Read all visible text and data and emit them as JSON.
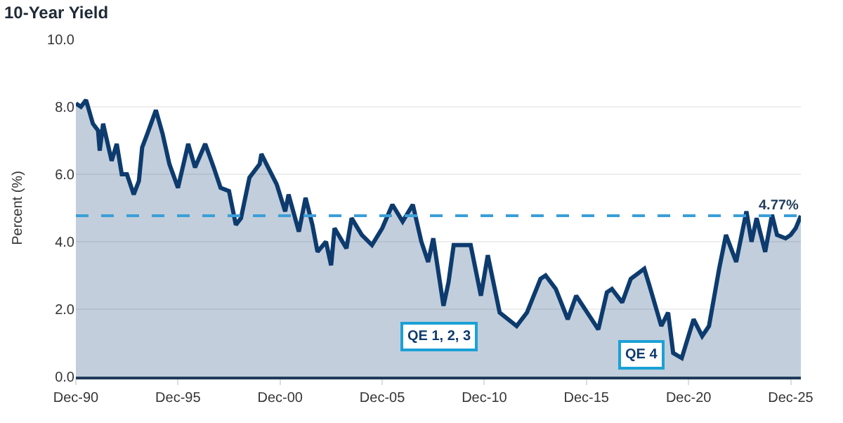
{
  "chart_data": {
    "type": "area",
    "title": "10-Year Yield",
    "ylabel": "Percent (%)",
    "x": [
      "1990-12",
      "1991-03",
      "1991-06",
      "1991-10",
      "1992-01",
      "1992-02",
      "1992-04",
      "1992-09",
      "1992-12",
      "1993-03",
      "1993-06",
      "1993-10",
      "1994-01",
      "1994-03",
      "1994-06",
      "1994-11",
      "1995-03",
      "1995-07",
      "1995-12",
      "1996-06",
      "1996-10",
      "1997-04",
      "1997-09",
      "1998-01",
      "1998-06",
      "1998-10",
      "1999-01",
      "1999-06",
      "1999-12",
      "2000-01",
      "2000-05",
      "2000-10",
      "2001-03",
      "2001-05",
      "2001-11",
      "2002-03",
      "2002-07",
      "2002-10",
      "2003-03",
      "2003-06",
      "2003-08",
      "2004-03",
      "2004-06",
      "2004-12",
      "2005-06",
      "2005-12",
      "2006-06",
      "2006-12",
      "2007-06",
      "2007-11",
      "2008-03",
      "2008-06",
      "2008-12",
      "2009-03",
      "2009-06",
      "2010-04",
      "2010-10",
      "2011-02",
      "2011-09",
      "2012-07",
      "2013-01",
      "2013-09",
      "2013-12",
      "2014-06",
      "2015-01",
      "2015-06",
      "2016-07",
      "2016-12",
      "2017-03",
      "2017-09",
      "2018-02",
      "2018-10",
      "2019-01",
      "2019-08",
      "2019-12",
      "2020-03",
      "2020-08",
      "2021-03",
      "2021-08",
      "2021-12",
      "2022-06",
      "2022-10",
      "2023-04",
      "2023-10",
      "2024-01",
      "2024-04",
      "2024-09",
      "2025-01",
      "2025-04",
      "2025-09",
      "2025-12",
      "2026-03",
      "2026-06"
    ],
    "series": [
      {
        "color": "#0d3b6e",
        "values": [
          8.1,
          8.0,
          8.2,
          7.5,
          7.3,
          6.7,
          7.5,
          6.4,
          6.9,
          6.0,
          6.0,
          5.4,
          5.8,
          6.8,
          7.2,
          7.9,
          7.2,
          6.3,
          5.6,
          6.9,
          6.2,
          6.9,
          6.2,
          5.6,
          5.5,
          4.5,
          4.7,
          5.9,
          6.3,
          6.6,
          6.2,
          5.7,
          4.9,
          5.4,
          4.3,
          5.3,
          4.5,
          3.7,
          4.0,
          3.3,
          4.4,
          3.8,
          4.7,
          4.2,
          3.9,
          4.4,
          5.1,
          4.6,
          5.1,
          4.0,
          3.4,
          4.1,
          2.1,
          2.8,
          3.9,
          3.9,
          2.4,
          3.6,
          1.9,
          1.5,
          1.9,
          2.9,
          3.0,
          2.6,
          1.7,
          2.4,
          1.4,
          2.5,
          2.6,
          2.2,
          2.9,
          3.2,
          2.7,
          1.5,
          1.9,
          0.7,
          0.55,
          1.7,
          1.2,
          1.5,
          3.2,
          4.2,
          3.4,
          4.9,
          4.0,
          4.7,
          3.7,
          4.8,
          4.2,
          4.1,
          4.2,
          4.4,
          4.77
        ]
      }
    ],
    "xlim": [
      "1990-12",
      "2026-06"
    ],
    "xticks": [
      {
        "value": "1990-12",
        "label": "Dec-90"
      },
      {
        "value": "1995-12",
        "label": "Dec-95"
      },
      {
        "value": "2000-12",
        "label": "Dec-00"
      },
      {
        "value": "2005-12",
        "label": "Dec-05"
      },
      {
        "value": "2010-12",
        "label": "Dec-10"
      },
      {
        "value": "2015-12",
        "label": "Dec-15"
      },
      {
        "value": "2020-12",
        "label": "Dec-20"
      },
      {
        "value": "2025-12",
        "label": "Dec-25"
      }
    ],
    "ylim": [
      0,
      10
    ],
    "yticks": [
      {
        "value": 0,
        "label": "0.0"
      },
      {
        "value": 2,
        "label": "2.0"
      },
      {
        "value": 4,
        "label": "4.0"
      },
      {
        "value": 6,
        "label": "6.0"
      },
      {
        "value": 8,
        "label": "8.0"
      },
      {
        "value": 10,
        "label": "10.0"
      }
    ],
    "grid": "y",
    "line_style": "solid",
    "ref_lines": [
      {
        "axis": "y",
        "value": 4.77,
        "label": "4.77%",
        "color": "#3a9fd8",
        "line_style": "dashed"
      }
    ],
    "annotations": [
      "QE 1, 2, 3",
      "QE 4"
    ]
  }
}
